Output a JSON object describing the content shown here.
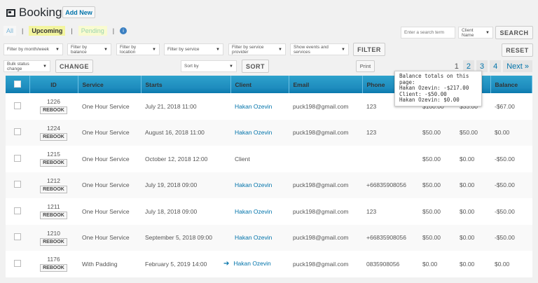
{
  "header": {
    "title": "Bookings",
    "add_new": "Add New"
  },
  "status_tabs": [
    {
      "label": "All",
      "color": "#7ab6d8"
    },
    {
      "label": "Upcoming",
      "color": "#333"
    },
    {
      "label": "Pending",
      "color": "#9bd4b0"
    }
  ],
  "search": {
    "placeholder": "Enter a search term",
    "field": "Client Name",
    "button": "SEARCH"
  },
  "filters": {
    "month": "Filter by month/week",
    "balance": "Filter by balance",
    "location": "Filter by location",
    "service": "Filter by service",
    "provider": "Filter by service provider",
    "events": "Show events and services",
    "filter_button": "FILTER",
    "reset_button": "RESET"
  },
  "bulk": {
    "select": "Bulk status change",
    "button": "CHANGE",
    "sort": "Sort by",
    "sort_button": "SORT",
    "print": "Print"
  },
  "pagination": {
    "current": "1",
    "pages": [
      "2",
      "3",
      "4"
    ],
    "next": "Next »"
  },
  "tooltip": {
    "title": "Balance totals on this page:",
    "lines": [
      "Hakan Ozevin: -$217.00",
      "Client: -$50.00",
      "Hakan Ozevin: $0.00"
    ]
  },
  "table": {
    "columns": [
      "ID",
      "Service",
      "Starts",
      "Client",
      "Email",
      "Phone",
      "",
      "",
      "Balance"
    ],
    "rebook_label": "REBOOK",
    "rows": [
      {
        "id": "1226",
        "service": "One Hour Service",
        "starts": "July 21, 2018 11:00",
        "client": "Hakan Ozevin",
        "client_link": true,
        "email": "puck198@gmail.com",
        "phone": "123",
        "c7": "$100.00",
        "c8": "$33.00",
        "balance": "-$67.00"
      },
      {
        "id": "1224",
        "service": "One Hour Service",
        "starts": "August 16, 2018 11:00",
        "client": "Hakan Ozevin",
        "client_link": true,
        "email": "puck198@gmail.com",
        "phone": "123",
        "c7": "$50.00",
        "c8": "$50.00",
        "balance": "$0.00"
      },
      {
        "id": "1215",
        "service": "One Hour Service",
        "starts": "October 12, 2018 12:00",
        "client": "Client",
        "client_link": false,
        "email": "",
        "phone": "",
        "c7": "$50.00",
        "c8": "$0.00",
        "balance": "-$50.00"
      },
      {
        "id": "1212",
        "service": "One Hour Service",
        "starts": "July 19, 2018 09:00",
        "client": "Hakan Ozevin",
        "client_link": true,
        "email": "puck198@gmail.com",
        "phone": "+66835908056",
        "c7": "$50.00",
        "c8": "$0.00",
        "balance": "-$50.00"
      },
      {
        "id": "1211",
        "service": "One Hour Service",
        "starts": "July 18, 2018 09:00",
        "client": "Hakan Ozevin",
        "client_link": true,
        "email": "puck198@gmail.com",
        "phone": "123",
        "c7": "$50.00",
        "c8": "$0.00",
        "balance": "-$50.00"
      },
      {
        "id": "1210",
        "service": "One Hour Service",
        "starts": "September 5, 2018 09:00",
        "client": "Hakan Ozevin",
        "client_link": true,
        "email": "puck198@gmail.com",
        "phone": "+66835908056",
        "c7": "$50.00",
        "c8": "$0.00",
        "balance": "-$50.00"
      },
      {
        "id": "1176",
        "service": "With Padding",
        "starts": "February 5, 2019 14:00",
        "client": "Hakan Ozevin",
        "client_link": true,
        "login_icon": true,
        "email": "puck198@gmail.com",
        "phone": "0835908056",
        "c7": "$0.00",
        "c8": "$0.00",
        "balance": "$0.00"
      }
    ]
  }
}
